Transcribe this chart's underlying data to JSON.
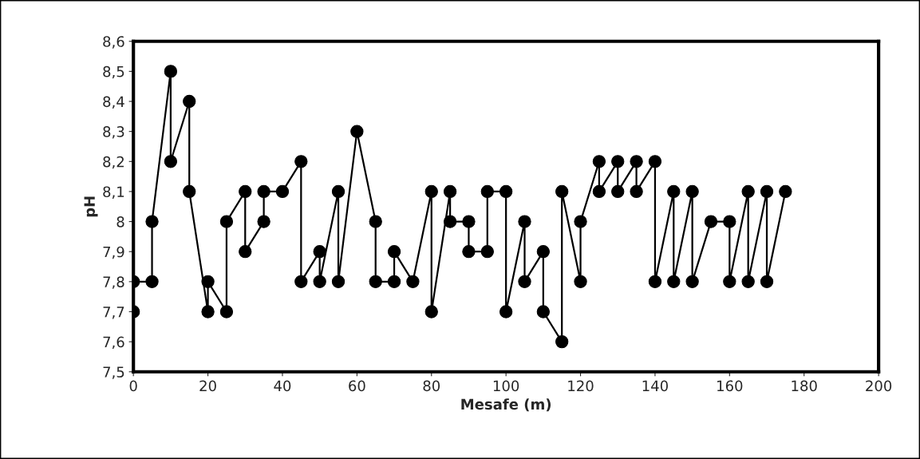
{
  "chart_data": {
    "type": "line",
    "xlabel": "Mesafe (m)",
    "ylabel": "pH",
    "x": [
      0,
      0,
      5,
      5,
      10,
      10,
      15,
      15,
      20,
      20,
      25,
      25,
      30,
      30,
      35,
      35,
      40,
      45,
      45,
      50,
      50,
      55,
      55,
      60,
      65,
      65,
      70,
      70,
      75,
      80,
      80,
      85,
      85,
      90,
      90,
      95,
      95,
      100,
      100,
      105,
      105,
      110,
      110,
      115,
      115,
      120,
      120,
      125,
      125,
      130,
      130,
      135,
      135,
      140,
      140,
      145,
      145,
      150,
      150,
      155,
      160,
      160,
      165,
      165,
      170,
      170,
      175
    ],
    "series": [
      {
        "color": "#000000",
        "values": [
          7.7,
          7.8,
          7.8,
          8.0,
          8.5,
          8.2,
          8.4,
          8.1,
          7.7,
          7.8,
          7.7,
          8.0,
          8.1,
          7.9,
          8.0,
          8.1,
          8.1,
          8.2,
          7.8,
          7.9,
          7.8,
          8.1,
          7.8,
          8.3,
          8.0,
          7.8,
          7.8,
          7.9,
          7.8,
          8.1,
          7.7,
          8.1,
          8.0,
          8.0,
          7.9,
          7.9,
          8.1,
          8.1,
          7.7,
          8.0,
          7.8,
          7.9,
          7.7,
          7.6,
          8.1,
          7.8,
          8.0,
          8.2,
          8.1,
          8.2,
          8.1,
          8.2,
          8.1,
          8.2,
          7.8,
          8.1,
          7.8,
          8.1,
          7.8,
          8.0,
          8.0,
          7.8,
          8.1,
          7.8,
          8.1,
          7.8,
          8.1
        ]
      }
    ],
    "xlim": [
      0,
      200
    ],
    "xticks": [
      0,
      20,
      40,
      60,
      80,
      100,
      120,
      140,
      160,
      180,
      200
    ],
    "ylim": [
      7.5,
      8.6
    ],
    "yticks": [
      {
        "value": 7.5,
        "label": "7,5"
      },
      {
        "value": 7.6,
        "label": "7,6"
      },
      {
        "value": 7.7,
        "label": "7,7"
      },
      {
        "value": 7.8,
        "label": "7,8"
      },
      {
        "value": 7.9,
        "label": "7,9"
      },
      8,
      {
        "value": 8.1,
        "label": "8,1"
      },
      {
        "value": 8.2,
        "label": "8,2"
      },
      {
        "value": 8.3,
        "label": "8,3"
      },
      {
        "value": 8.4,
        "label": "8,4"
      },
      {
        "value": 8.5,
        "label": "8,5"
      },
      {
        "value": 8.6,
        "label": "8,6"
      }
    ],
    "grid": false,
    "marker": "circle",
    "line_style": "solid"
  }
}
